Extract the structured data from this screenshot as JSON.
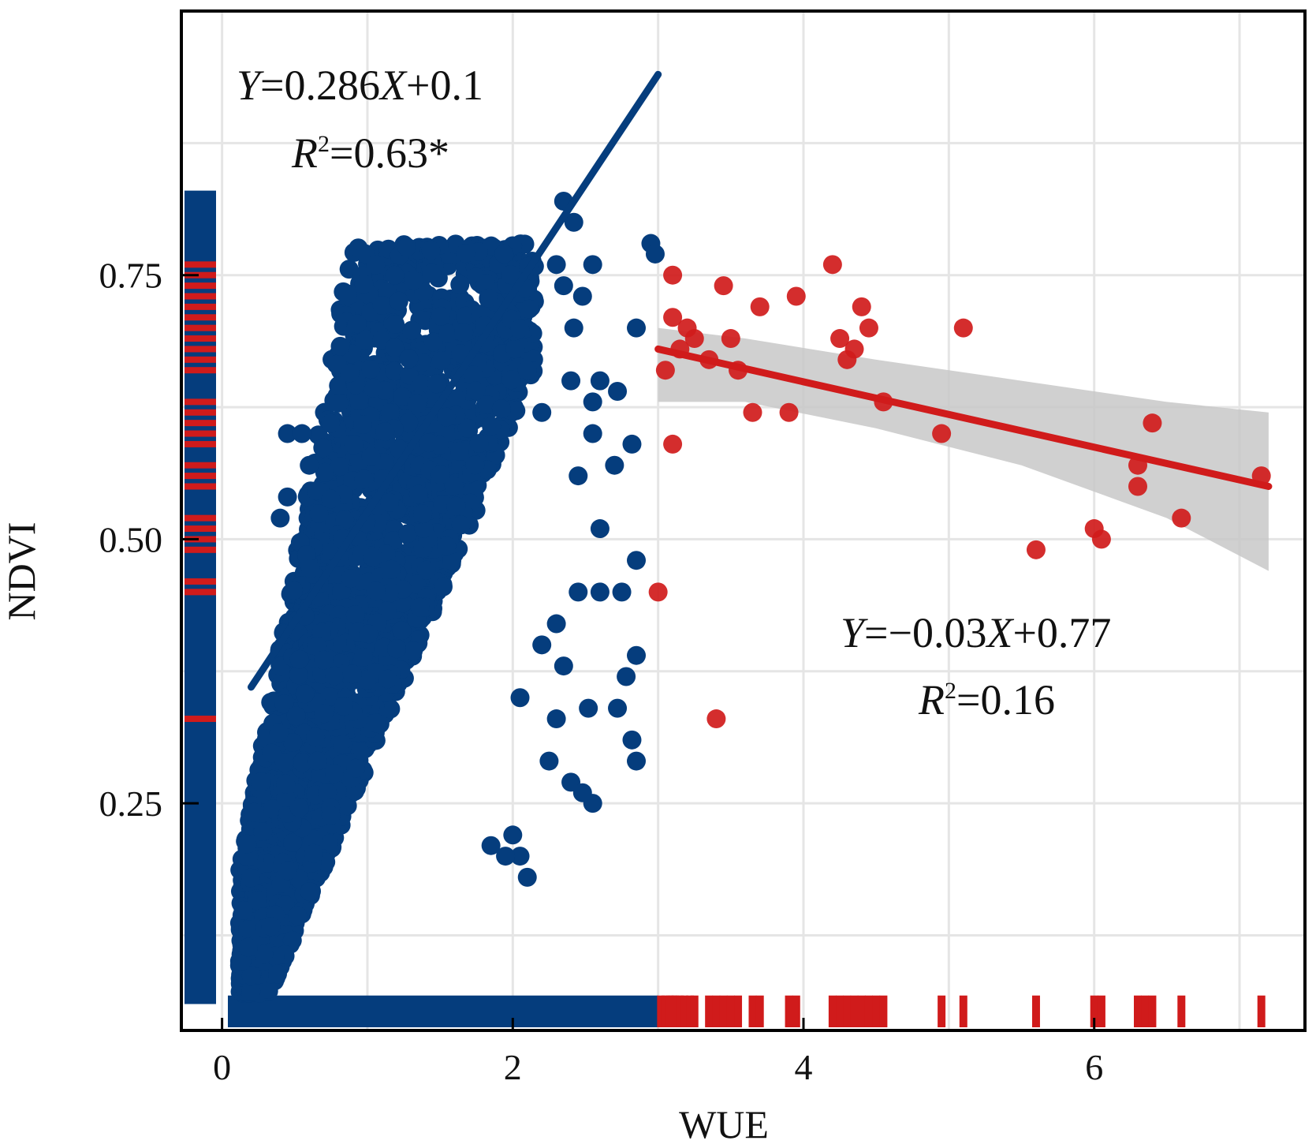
{
  "chart_data": {
    "type": "scatter",
    "xlabel": "WUE",
    "ylabel": "NDVI",
    "xlim": [
      -0.28,
      7.45
    ],
    "ylim": [
      0.035,
      1.0
    ],
    "x_ticks": [
      0,
      2,
      4,
      6
    ],
    "x_tick_labels": [
      "0",
      "2",
      "4",
      "6"
    ],
    "y_ticks": [
      0.25,
      0.5,
      0.75
    ],
    "y_tick_labels": [
      "0.25",
      "0.50",
      "0.75"
    ],
    "grid": true,
    "colors": {
      "blue": "#053d7d",
      "red": "#d01b1b",
      "band": "#c8c8c8",
      "grid": "#e5e5e5"
    },
    "series": [
      {
        "name": "blue",
        "color": "#053d7d",
        "fit": {
          "slope": 0.286,
          "intercept": 0.1,
          "x_range": [
            0.2,
            3.0
          ]
        },
        "equation": {
          "y": "Y",
          "eq": "=0.286",
          "x": "X",
          "rest": "+0.1"
        },
        "r2": {
          "r": "R",
          "sup": "2",
          "rest": "=0.63*"
        },
        "points": [
          [
            2.35,
            0.82
          ],
          [
            2.42,
            0.8
          ],
          [
            2.55,
            0.76
          ],
          [
            2.95,
            0.78
          ],
          [
            2.98,
            0.77
          ],
          [
            2.3,
            0.76
          ],
          [
            2.35,
            0.74
          ],
          [
            2.48,
            0.73
          ],
          [
            2.42,
            0.7
          ],
          [
            2.4,
            0.65
          ],
          [
            2.6,
            0.65
          ],
          [
            2.55,
            0.6
          ],
          [
            2.55,
            0.63
          ],
          [
            2.72,
            0.64
          ],
          [
            2.85,
            0.7
          ],
          [
            2.82,
            0.59
          ],
          [
            2.7,
            0.57
          ],
          [
            2.45,
            0.56
          ],
          [
            2.6,
            0.51
          ],
          [
            2.85,
            0.48
          ],
          [
            2.75,
            0.45
          ],
          [
            2.6,
            0.45
          ],
          [
            2.45,
            0.45
          ],
          [
            2.85,
            0.39
          ],
          [
            2.78,
            0.37
          ],
          [
            2.35,
            0.38
          ],
          [
            2.3,
            0.33
          ],
          [
            2.52,
            0.34
          ],
          [
            2.72,
            0.34
          ],
          [
            2.82,
            0.31
          ],
          [
            2.85,
            0.29
          ],
          [
            2.25,
            0.29
          ],
          [
            2.4,
            0.27
          ],
          [
            2.55,
            0.25
          ],
          [
            2.48,
            0.26
          ],
          [
            0.45,
            0.6
          ],
          [
            0.55,
            0.6
          ],
          [
            0.6,
            0.57
          ],
          [
            0.45,
            0.54
          ],
          [
            0.4,
            0.52
          ],
          [
            2.1,
            0.18
          ],
          [
            2.05,
            0.2
          ],
          [
            1.95,
            0.2
          ],
          [
            1.85,
            0.21
          ],
          [
            2.0,
            0.22
          ],
          [
            2.1,
            0.66
          ],
          [
            2.2,
            0.62
          ],
          [
            2.3,
            0.42
          ],
          [
            2.2,
            0.4
          ],
          [
            2.05,
            0.35
          ]
        ]
      },
      {
        "name": "red",
        "color": "#d01b1b",
        "fit": {
          "slope": -0.03,
          "intercept": 0.77,
          "x_range": [
            3.0,
            7.2
          ]
        },
        "equation": {
          "y": "Y",
          "eq": "=−0.03",
          "x": "X",
          "rest": "+0.77"
        },
        "r2": {
          "r": "R",
          "sup": "2",
          "rest": "=0.16"
        },
        "points": [
          [
            3.1,
            0.75
          ],
          [
            3.45,
            0.74
          ],
          [
            3.7,
            0.72
          ],
          [
            3.95,
            0.73
          ],
          [
            4.2,
            0.76
          ],
          [
            4.4,
            0.72
          ],
          [
            4.45,
            0.7
          ],
          [
            4.35,
            0.68
          ],
          [
            4.25,
            0.69
          ],
          [
            4.3,
            0.67
          ],
          [
            5.1,
            0.7
          ],
          [
            3.1,
            0.71
          ],
          [
            3.2,
            0.7
          ],
          [
            3.15,
            0.68
          ],
          [
            3.25,
            0.69
          ],
          [
            3.35,
            0.67
          ],
          [
            3.5,
            0.69
          ],
          [
            3.55,
            0.66
          ],
          [
            3.05,
            0.66
          ],
          [
            3.65,
            0.62
          ],
          [
            3.9,
            0.62
          ],
          [
            4.55,
            0.63
          ],
          [
            4.95,
            0.6
          ],
          [
            3.1,
            0.59
          ],
          [
            6.4,
            0.61
          ],
          [
            6.3,
            0.57
          ],
          [
            6.3,
            0.55
          ],
          [
            7.15,
            0.56
          ],
          [
            6.6,
            0.52
          ],
          [
            6.0,
            0.51
          ],
          [
            6.05,
            0.5
          ],
          [
            5.6,
            0.49
          ],
          [
            3.0,
            0.45
          ],
          [
            3.4,
            0.33
          ]
        ]
      }
    ],
    "band": {
      "upper": [
        [
          3.0,
          0.7
        ],
        [
          3.6,
          0.69
        ],
        [
          4.5,
          0.67
        ],
        [
          5.5,
          0.65
        ],
        [
          6.5,
          0.63
        ],
        [
          7.2,
          0.62
        ]
      ],
      "lower": [
        [
          3.0,
          0.63
        ],
        [
          3.6,
          0.63
        ],
        [
          4.5,
          0.605
        ],
        [
          5.5,
          0.57
        ],
        [
          6.5,
          0.52
        ],
        [
          7.2,
          0.47
        ]
      ]
    },
    "rug_x_red": [
      3.02,
      3.05,
      3.08,
      3.1,
      3.12,
      3.15,
      3.18,
      3.22,
      3.25,
      3.35,
      3.4,
      3.45,
      3.5,
      3.55,
      3.65,
      3.7,
      3.9,
      3.95,
      4.2,
      4.25,
      4.3,
      4.35,
      4.4,
      4.45,
      4.5,
      4.55,
      4.95,
      5.1,
      5.6,
      6.0,
      6.05,
      6.3,
      6.35,
      6.4,
      6.6,
      7.15
    ],
    "rug_y_red": [
      0.33,
      0.45,
      0.46,
      0.49,
      0.5,
      0.51,
      0.52,
      0.55,
      0.56,
      0.57,
      0.59,
      0.6,
      0.61,
      0.62,
      0.63,
      0.66,
      0.67,
      0.68,
      0.69,
      0.7,
      0.71,
      0.72,
      0.73,
      0.74,
      0.75,
      0.76
    ]
  }
}
